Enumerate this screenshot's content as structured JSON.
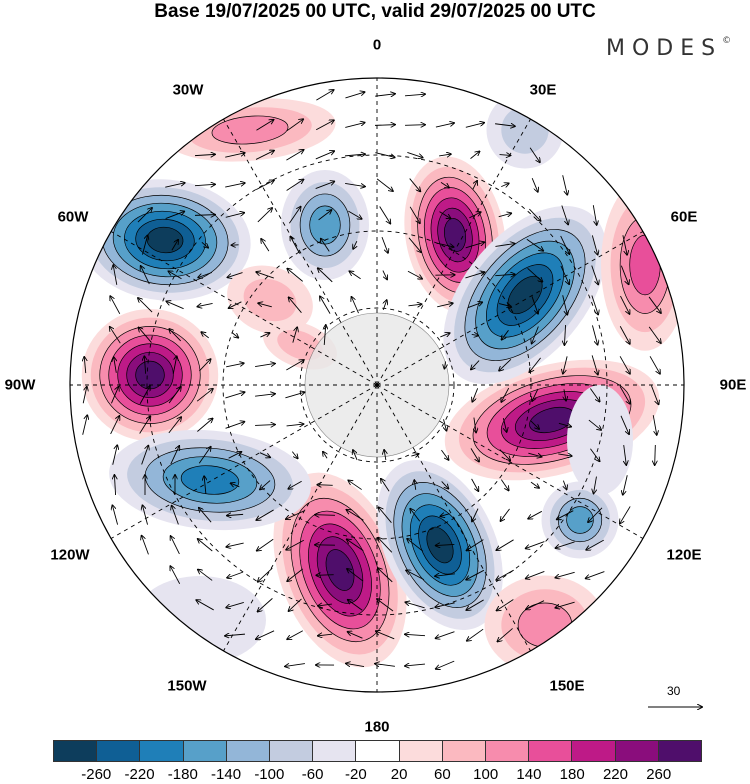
{
  "title": "Base 19/07/2025 00 UTC, valid 29/07/2025 00 UTC",
  "logo": {
    "text": "MODES",
    "mark": "©"
  },
  "longitude_labels": {
    "l0": "0",
    "l30e": "30E",
    "l60e": "60E",
    "l90e": "90E",
    "l120e": "120E",
    "l150e": "150E",
    "l180": "180",
    "l150w": "150W",
    "l120w": "120W",
    "l90w": "90W",
    "l60w": "60W",
    "l30w": "30W"
  },
  "vector_reference": {
    "value": "30"
  },
  "colorbar": {
    "colors": [
      "#0d3d5c",
      "#0f5f95",
      "#1f7fb8",
      "#57a0c9",
      "#93b6d8",
      "#c3cce0",
      "#e6e4f0",
      "#ffffff",
      "#fcdcdc",
      "#fbb9c0",
      "#f78cad",
      "#e84f9a",
      "#be1a87",
      "#8a0d7c",
      "#4f0e6b"
    ],
    "ticks": [
      "-260",
      "-220",
      "-180",
      "-140",
      "-100",
      "-60",
      "-20",
      "20",
      "60",
      "100",
      "140",
      "180",
      "220",
      "260"
    ]
  },
  "land_color": "#e8e8e8"
}
